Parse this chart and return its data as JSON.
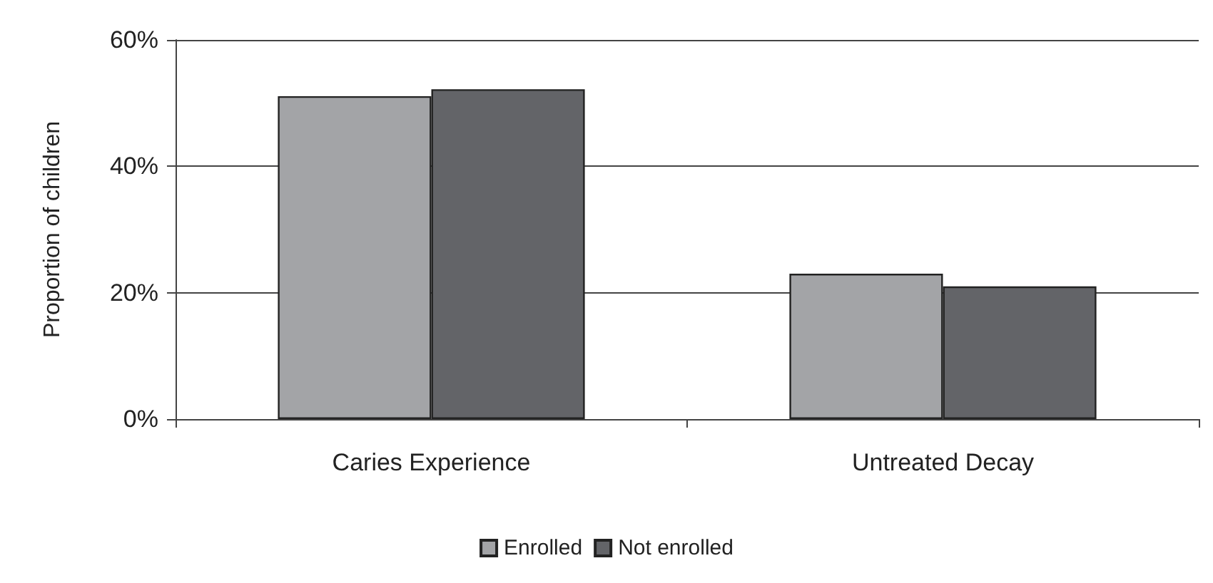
{
  "chart_data": {
    "type": "bar",
    "ylabel": "Proportion of children",
    "categories": [
      "Caries Experience",
      "Untreated Decay"
    ],
    "series": [
      {
        "name": "Enrolled",
        "color": "#a3a4a7",
        "values": [
          51.1,
          23
        ]
      },
      {
        "name": "Not enrolled",
        "color": "#636468",
        "values": [
          52.2,
          21
        ]
      }
    ],
    "ylim": [
      0,
      60
    ],
    "yticks": [
      {
        "value": 0,
        "label": "0%"
      },
      {
        "value": 20,
        "label": "20%"
      },
      {
        "value": 40,
        "label": "40%"
      },
      {
        "value": 60,
        "label": "60%"
      }
    ],
    "grid": "y",
    "legend": "bottom"
  }
}
